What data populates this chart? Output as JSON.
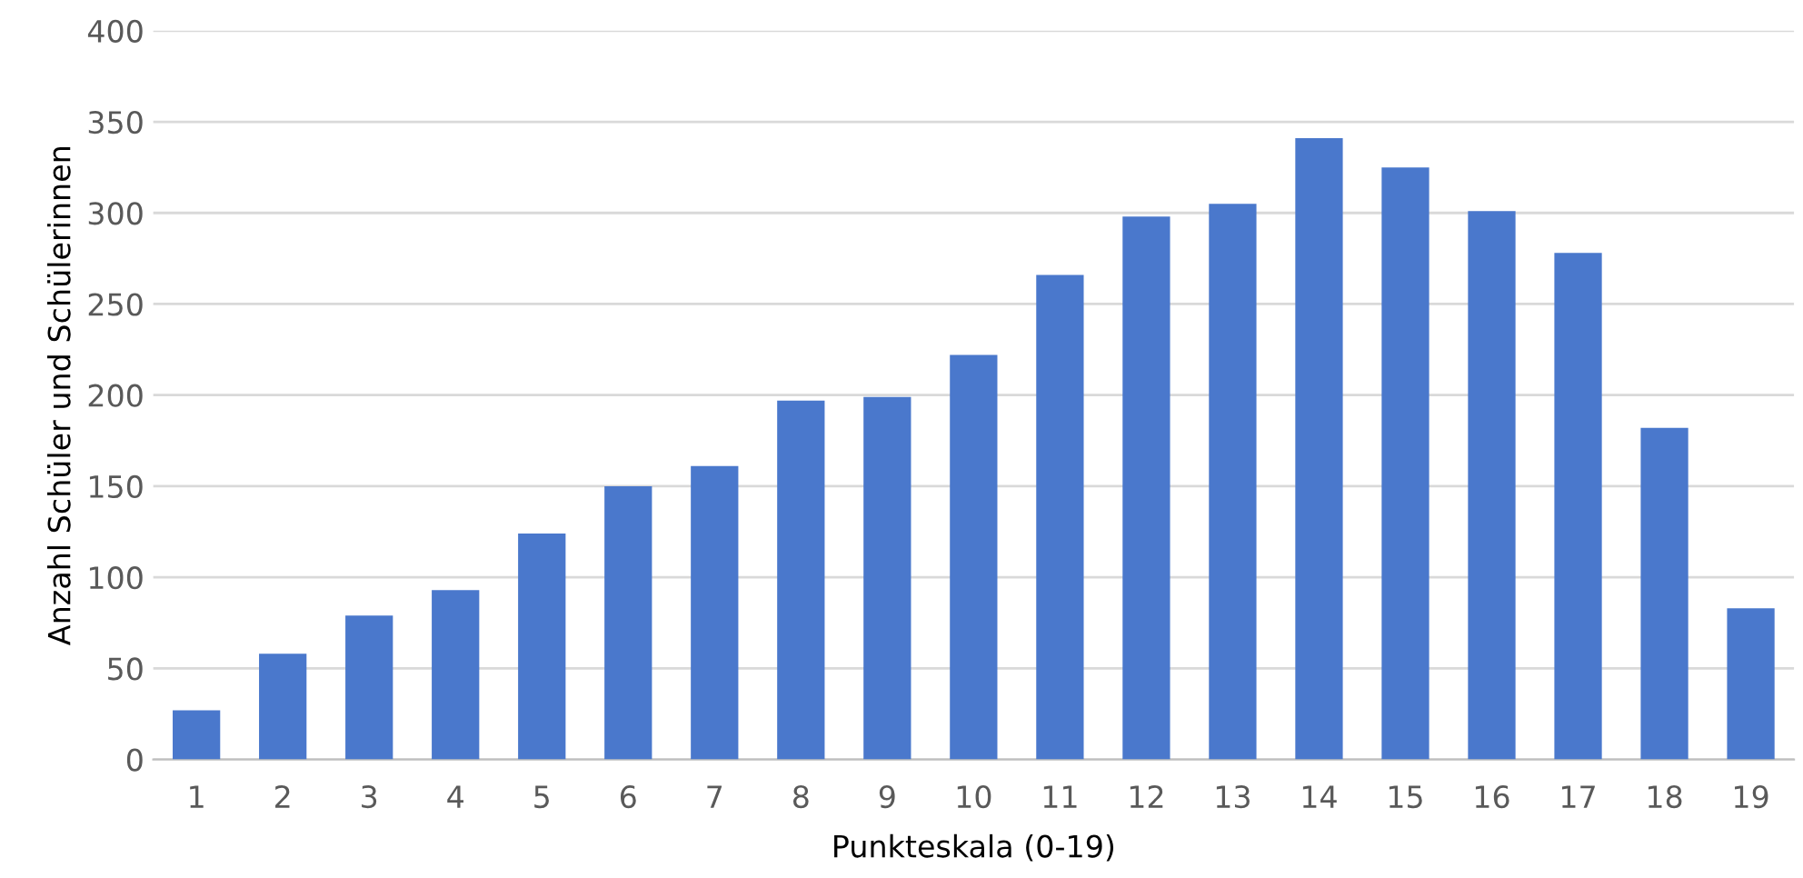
{
  "chart_data": {
    "type": "bar",
    "xlabel": "Punkteskala (0-19)",
    "ylabel": "Anzahl Schüler und Schülerinnen",
    "categories": [
      "1",
      "2",
      "3",
      "4",
      "5",
      "6",
      "7",
      "8",
      "9",
      "10",
      "11",
      "12",
      "13",
      "14",
      "15",
      "16",
      "17",
      "18",
      "19"
    ],
    "values": [
      27,
      58,
      79,
      93,
      124,
      150,
      161,
      197,
      199,
      222,
      266,
      298,
      305,
      341,
      325,
      301,
      278,
      182,
      83
    ],
    "color": "#4a78cc",
    "ylim": [
      0,
      400
    ],
    "yticks": [
      0,
      50,
      100,
      150,
      200,
      250,
      300,
      350,
      400
    ],
    "grid": "y",
    "legend": false
  }
}
